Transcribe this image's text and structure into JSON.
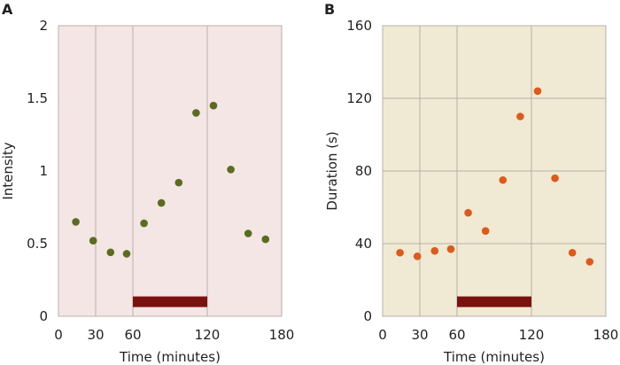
{
  "chart_data": [
    {
      "panel_label": "A",
      "type": "scatter",
      "xlabel": "Time (minutes)",
      "ylabel": "Intensity",
      "xlim": [
        0,
        180
      ],
      "ylim": [
        0,
        2
      ],
      "xticks": [
        0,
        30,
        60,
        120,
        180
      ],
      "yticks": [
        0,
        0.5,
        1,
        1.5,
        2
      ],
      "ytick_labels": [
        "0",
        "0.5",
        "1",
        "1.5",
        "2"
      ],
      "vgrid": [
        30,
        60,
        120
      ],
      "grid": "vertical",
      "background_color": "#f3e6e4",
      "point_color": "#5b6b1f",
      "bar": {
        "start": 60,
        "end": 120,
        "y": 0.1,
        "color": "#7a1210"
      },
      "points": [
        {
          "x": 14,
          "y": 0.65
        },
        {
          "x": 28,
          "y": 0.52
        },
        {
          "x": 42,
          "y": 0.44
        },
        {
          "x": 55,
          "y": 0.43
        },
        {
          "x": 69,
          "y": 0.64
        },
        {
          "x": 83,
          "y": 0.78
        },
        {
          "x": 97,
          "y": 0.92
        },
        {
          "x": 111,
          "y": 1.4
        },
        {
          "x": 125,
          "y": 1.45
        },
        {
          "x": 139,
          "y": 1.01
        },
        {
          "x": 153,
          "y": 0.57
        },
        {
          "x": 167,
          "y": 0.53
        }
      ]
    },
    {
      "panel_label": "B",
      "type": "scatter",
      "xlabel": "Time (minutes)",
      "ylabel": "Duration (s)",
      "xlim": [
        0,
        180
      ],
      "ylim": [
        0,
        160
      ],
      "xticks": [
        0,
        30,
        60,
        120,
        180
      ],
      "yticks": [
        0,
        40,
        80,
        120,
        160
      ],
      "ytick_labels": [
        "0",
        "40",
        "80",
        "120",
        "160"
      ],
      "vgrid": [
        30,
        60,
        120
      ],
      "hgrid": [
        40,
        80,
        120
      ],
      "grid": "both",
      "background_color": "#f0ead4",
      "point_color": "#dd5a1b",
      "bar": {
        "start": 60,
        "end": 120,
        "y": 8,
        "color": "#7a1210"
      },
      "points": [
        {
          "x": 14,
          "y": 35
        },
        {
          "x": 28,
          "y": 33
        },
        {
          "x": 42,
          "y": 36
        },
        {
          "x": 55,
          "y": 37
        },
        {
          "x": 69,
          "y": 57
        },
        {
          "x": 83,
          "y": 47
        },
        {
          "x": 97,
          "y": 75
        },
        {
          "x": 111,
          "y": 110
        },
        {
          "x": 125,
          "y": 124
        },
        {
          "x": 139,
          "y": 76
        },
        {
          "x": 153,
          "y": 35
        },
        {
          "x": 167,
          "y": 30
        }
      ]
    }
  ]
}
